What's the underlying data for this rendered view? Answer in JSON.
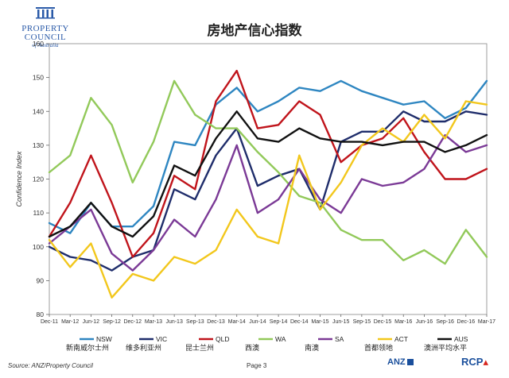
{
  "logo": {
    "line1": "PROPERTY",
    "line2": "COUNCIL",
    "line3": "of Australia"
  },
  "chart_data": {
    "type": "line",
    "title": "房地产信心指数",
    "ylabel": "Confidence Index",
    "ylim": [
      80,
      160
    ],
    "yticks": [
      80,
      90,
      100,
      110,
      120,
      130,
      140,
      150,
      160
    ],
    "grid": false,
    "legend_position": "bottom",
    "x": [
      "Dec-11",
      "Mar-12",
      "Jun-12",
      "Sep-12",
      "Dec-12",
      "Mar-13",
      "Jun-13",
      "Sep-13",
      "Dec-13",
      "Mar-14",
      "Jun-14",
      "Sep-14",
      "Dec-14",
      "Mar-15",
      "Jun-15",
      "Sep-15",
      "Dec-15",
      "Mar-16",
      "Jun-16",
      "Sep-16",
      "Dec-16",
      "Mar-17"
    ],
    "series": [
      {
        "name": "NSW",
        "label_cn": "新南威尔士州",
        "color": "#2e86c1",
        "values": [
          107,
          104,
          113,
          106,
          106,
          112,
          131,
          130,
          142,
          147,
          140,
          143,
          147,
          146,
          149,
          146,
          144,
          142,
          143,
          138,
          141,
          149
        ]
      },
      {
        "name": "VIC",
        "label_cn": "维多利亚州",
        "color": "#1f2d6b",
        "values": [
          100,
          97,
          96,
          93,
          97,
          99,
          117,
          114,
          127,
          135,
          118,
          121,
          123,
          111,
          131,
          134,
          134,
          140,
          137,
          137,
          140,
          139
        ]
      },
      {
        "name": "QLD",
        "label_cn": "昆士兰州",
        "color": "#c0141b",
        "values": [
          103,
          113,
          127,
          113,
          97,
          104,
          121,
          117,
          143,
          152,
          135,
          136,
          143,
          139,
          125,
          130,
          132,
          138,
          128,
          120,
          120,
          123
        ]
      },
      {
        "name": "WA",
        "label_cn": "西澳",
        "color": "#92c95a",
        "values": [
          122,
          127,
          144,
          136,
          119,
          131,
          149,
          139,
          135,
          135,
          128,
          122,
          115,
          113,
          105,
          102,
          102,
          96,
          99,
          95,
          105,
          97
        ]
      },
      {
        "name": "SA",
        "label_cn": "南澳",
        "color": "#7b3a96",
        "values": [
          101,
          106,
          111,
          98,
          93,
          99,
          108,
          103,
          114,
          130,
          110,
          114,
          123,
          114,
          110,
          120,
          118,
          119,
          123,
          133,
          128,
          130
        ]
      },
      {
        "name": "ACT",
        "label_cn": "首都领地",
        "color": "#f2c71c",
        "values": [
          102,
          94,
          101,
          85,
          92,
          90,
          97,
          95,
          99,
          111,
          103,
          101,
          127,
          111,
          119,
          130,
          135,
          131,
          139,
          132,
          143,
          142
        ]
      },
      {
        "name": "AUS",
        "label_cn": "澳洲平均水平",
        "color": "#111111",
        "values": [
          103,
          106,
          113,
          106,
          103,
          109,
          124,
          121,
          132,
          140,
          132,
          131,
          135,
          132,
          131,
          131,
          130,
          131,
          131,
          128,
          130,
          133
        ]
      }
    ]
  },
  "footer": {
    "source": "Source: ANZ/Property Council",
    "page": "Page 3"
  },
  "partners": {
    "anz": "ANZ",
    "rcp": "RCP"
  }
}
